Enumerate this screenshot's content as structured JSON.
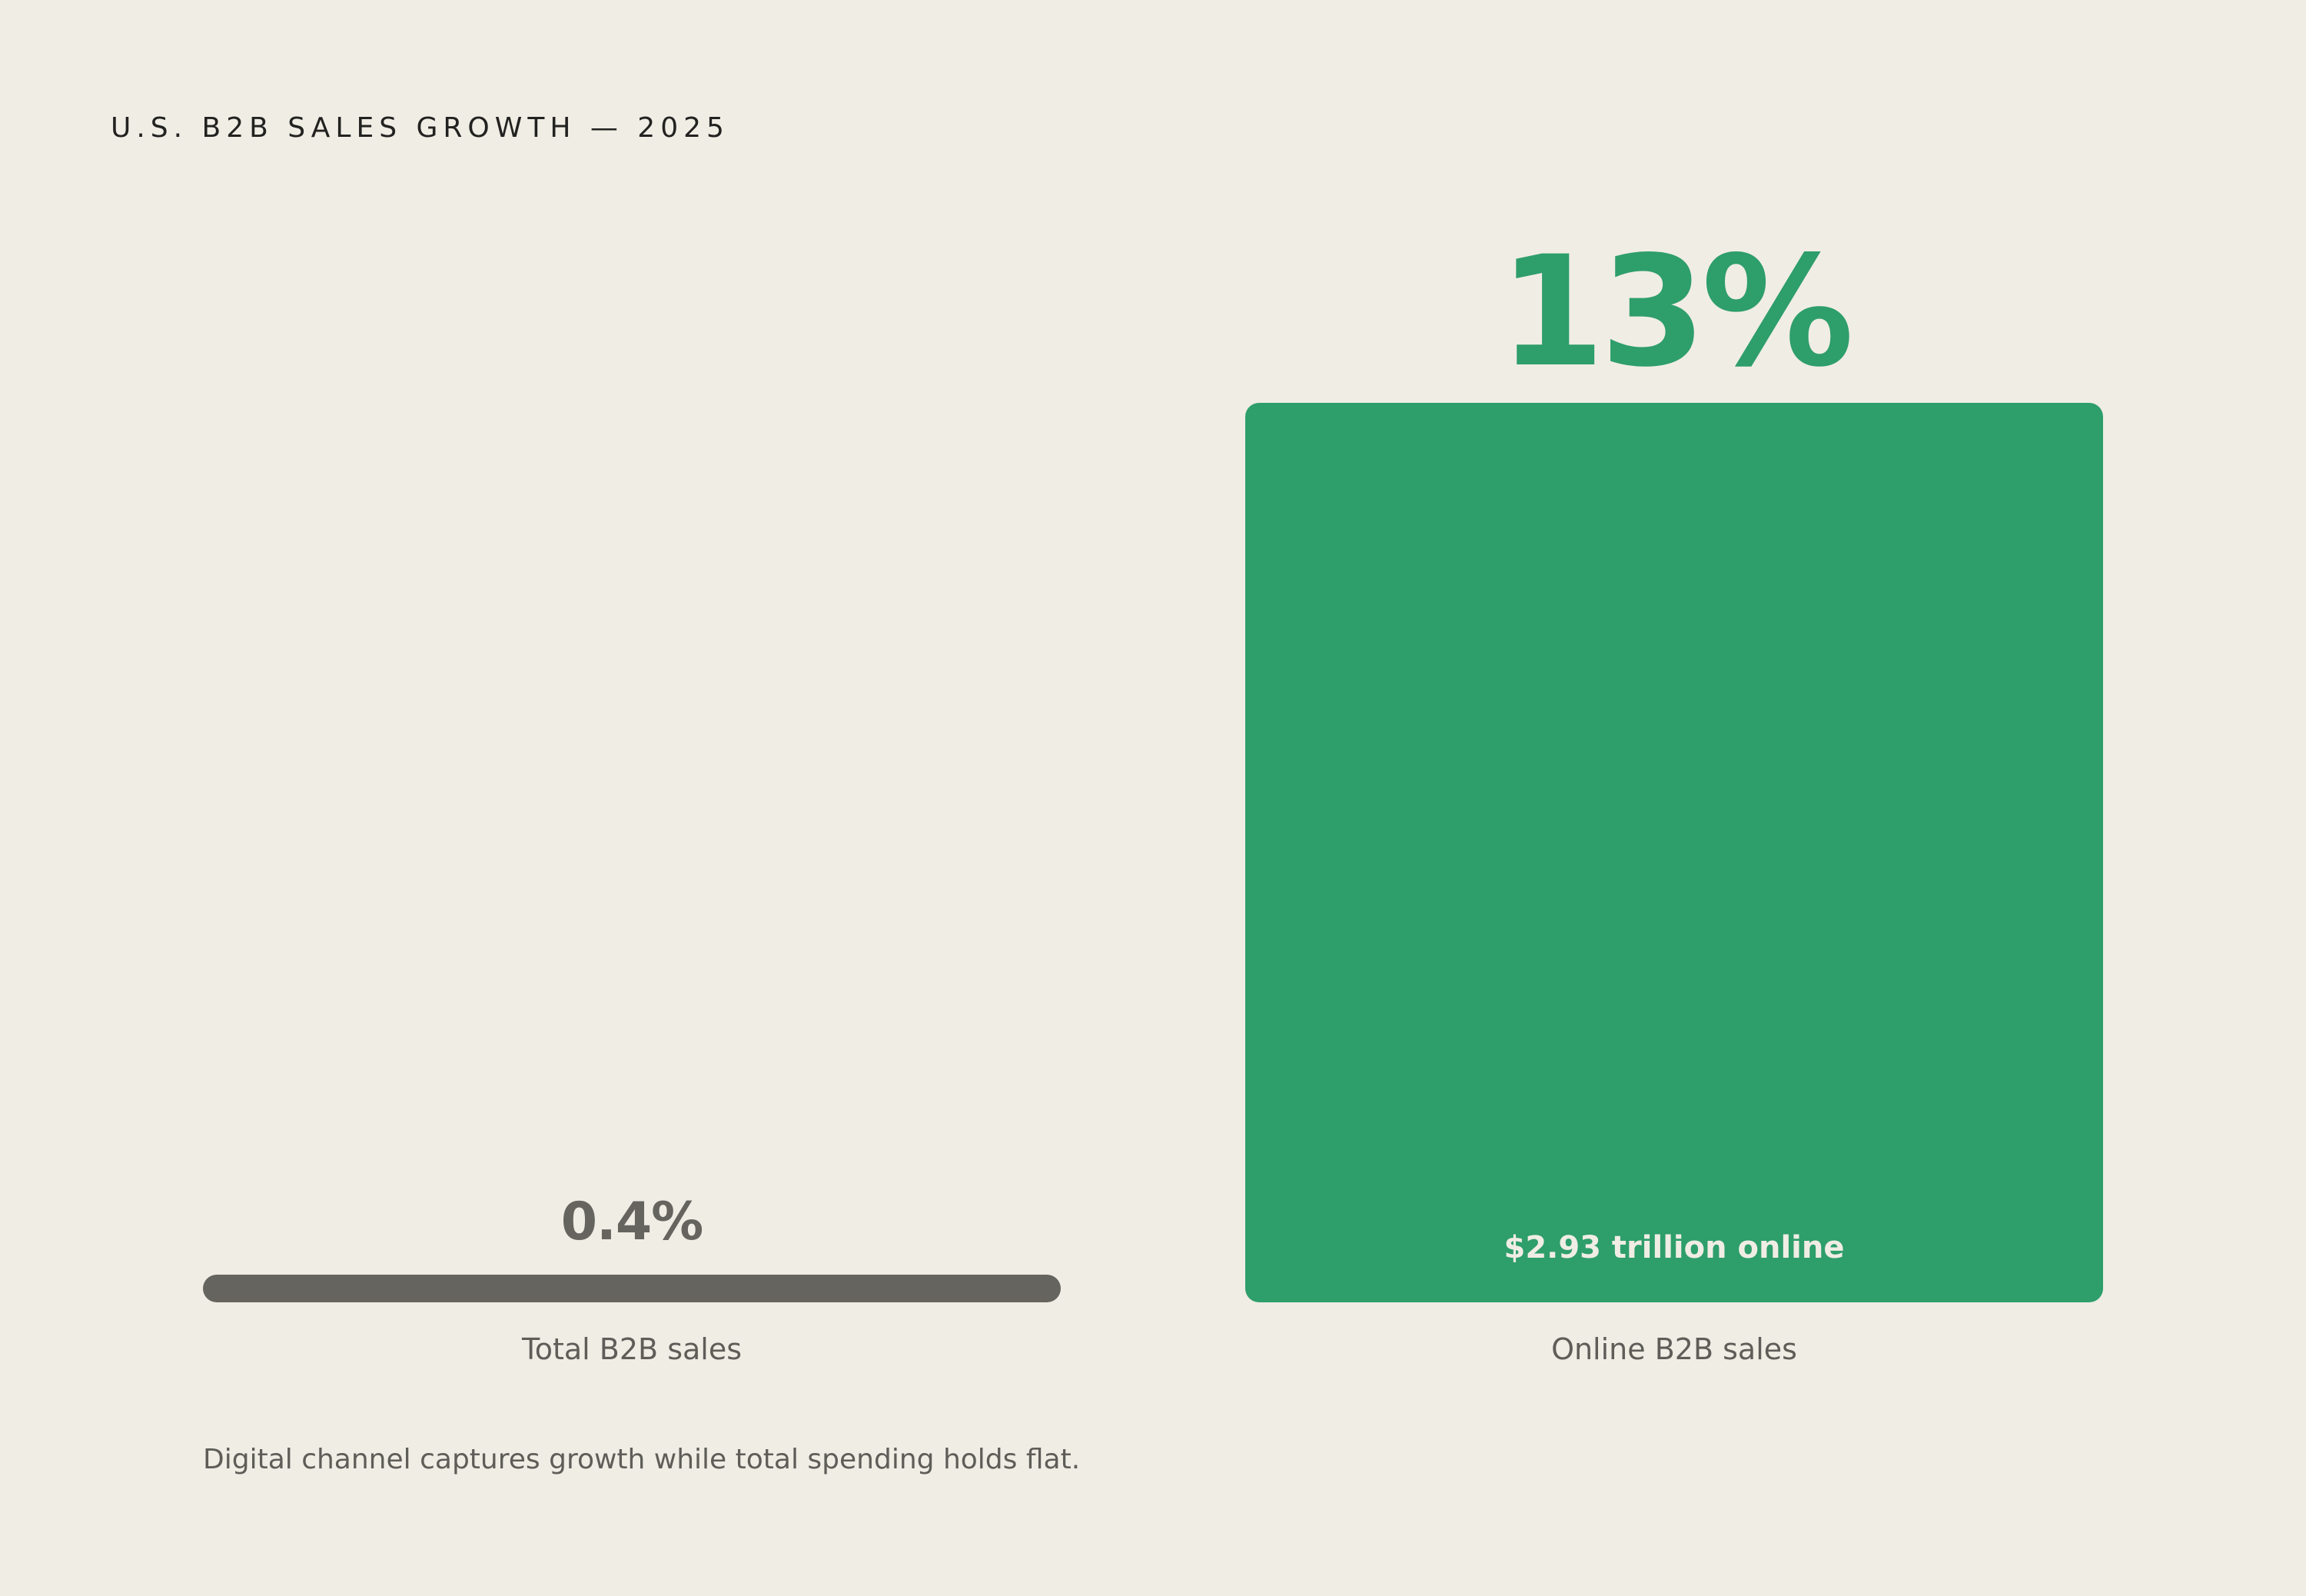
{
  "title": "U.S. B2B SALES GROWTH — 2025",
  "caption": "Digital channel captures growth while total spending holds flat.",
  "colors": {
    "background": "#f0ede5",
    "total": "#65645f",
    "online": "#2e9e6b",
    "inner_label": "#f0ede5",
    "category_label": "#5e5d58"
  },
  "chart_data": {
    "type": "bar",
    "title": "U.S. B2B SALES GROWTH — 2025",
    "xlabel": "",
    "ylabel": "",
    "categories": [
      "Total B2B sales",
      "Online B2B sales"
    ],
    "values": [
      0.4,
      13
    ],
    "value_labels": [
      "0.4%",
      "13%"
    ],
    "inner_labels": [
      "",
      "$2.93 trillion online"
    ],
    "bar_colors": [
      "#65645f",
      "#2e9e6b"
    ],
    "ylim": [
      0,
      13
    ],
    "grid": false,
    "legend": "none"
  }
}
